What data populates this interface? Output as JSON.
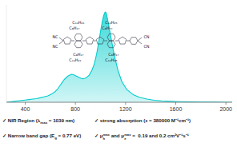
{
  "chart_data": {
    "type": "area",
    "x": [
      250,
      280,
      310,
      340,
      370,
      400,
      430,
      460,
      490,
      520,
      550,
      580,
      610,
      640,
      660,
      680,
      695,
      710,
      725,
      740,
      755,
      770,
      785,
      800,
      815,
      830,
      845,
      860,
      875,
      890,
      910,
      930,
      950,
      970,
      990,
      1005,
      1015,
      1025,
      1035,
      1039,
      1045,
      1055,
      1070,
      1090,
      1110,
      1140,
      1170,
      1210,
      1260,
      1310,
      1370,
      1430,
      1490,
      1560,
      1630,
      1720,
      1820,
      1920,
      2000,
      2050
    ],
    "values": [
      0.0,
      0.005,
      0.01,
      0.015,
      0.02,
      0.025,
      0.03,
      0.035,
      0.04,
      0.05,
      0.06,
      0.07,
      0.09,
      0.12,
      0.15,
      0.19,
      0.22,
      0.25,
      0.27,
      0.29,
      0.3,
      0.31,
      0.305,
      0.295,
      0.285,
      0.275,
      0.265,
      0.26,
      0.265,
      0.275,
      0.3,
      0.35,
      0.42,
      0.54,
      0.7,
      0.82,
      0.9,
      0.96,
      0.995,
      1.0,
      0.99,
      0.93,
      0.82,
      0.67,
      0.52,
      0.35,
      0.23,
      0.14,
      0.085,
      0.055,
      0.035,
      0.022,
      0.015,
      0.01,
      0.007,
      0.004,
      0.002,
      0.001,
      0.0005,
      0.0
    ],
    "color": "#00cccc",
    "xlim": [
      250,
      2050
    ],
    "ylim": [
      0,
      1.08
    ],
    "xticks": [
      400,
      800,
      1200,
      1600,
      2000
    ],
    "tick_labels": "x",
    "annotations": [
      "NC",
      "NC",
      "C₁₀H₂₁",
      "C₈H₁₇",
      "C₈H₁₇",
      "C₁₀H₂₁",
      "C₁₀H₂₅",
      "C₈H₇₇",
      "C₈H₁₇",
      "C₁₀H₂₅",
      "CN",
      "CN",
      [
        "✓ NIR Region (λ",
        {
          "sub": "max"
        },
        " = 1039 nm)"
      ],
      [
        "✓ Narrow band gap (E",
        {
          "sub": "g"
        },
        " = 0.77 eV)"
      ],
      [
        "✓ strong absorption (ε = 380000 M⁻¹cm⁻¹)"
      ],
      [
        "✓ μ",
        {
          "sub": "h",
          "sup": "max"
        },
        " and μ",
        {
          "sub": "e",
          "sup": "max"
        },
        " =  0.19 and 0.2 cm²V⁻¹s⁻¹"
      ]
    ]
  }
}
